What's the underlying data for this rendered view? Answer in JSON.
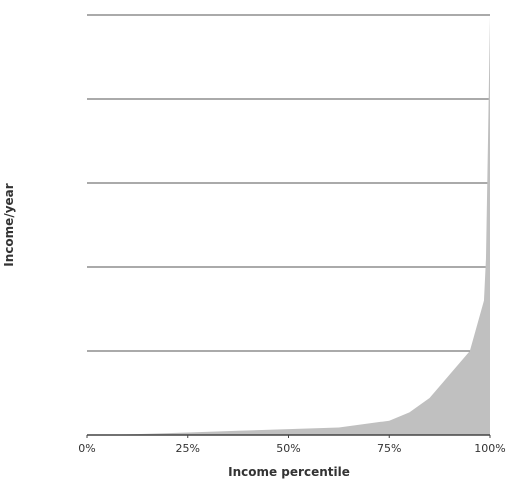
{
  "chart_data": {
    "type": "area",
    "title": "",
    "xlabel": "Income percentile",
    "ylabel": "Income/year",
    "x_tick_labels": [
      "0%",
      "25%",
      "50%",
      "75%",
      "100%"
    ],
    "x_tick_values": [
      0,
      25,
      50,
      75,
      100
    ],
    "xlim": [
      0,
      100
    ],
    "ylim": [
      0,
      5
    ],
    "y_gridlines": [
      1,
      2,
      3,
      4,
      5
    ],
    "grid": true,
    "legend": "none",
    "fill_color": "#c0c0c0",
    "series": [
      {
        "x": [
          0,
          12.5,
          25,
          37.5,
          50,
          62.5,
          75,
          80,
          85,
          90,
          95,
          98.5,
          99,
          99.5,
          100
        ],
        "values": [
          0.0,
          0.01,
          0.03,
          0.05,
          0.07,
          0.09,
          0.17,
          0.27,
          0.44,
          0.72,
          1.0,
          1.6,
          2.1,
          3.5,
          5.0
        ]
      }
    ]
  }
}
